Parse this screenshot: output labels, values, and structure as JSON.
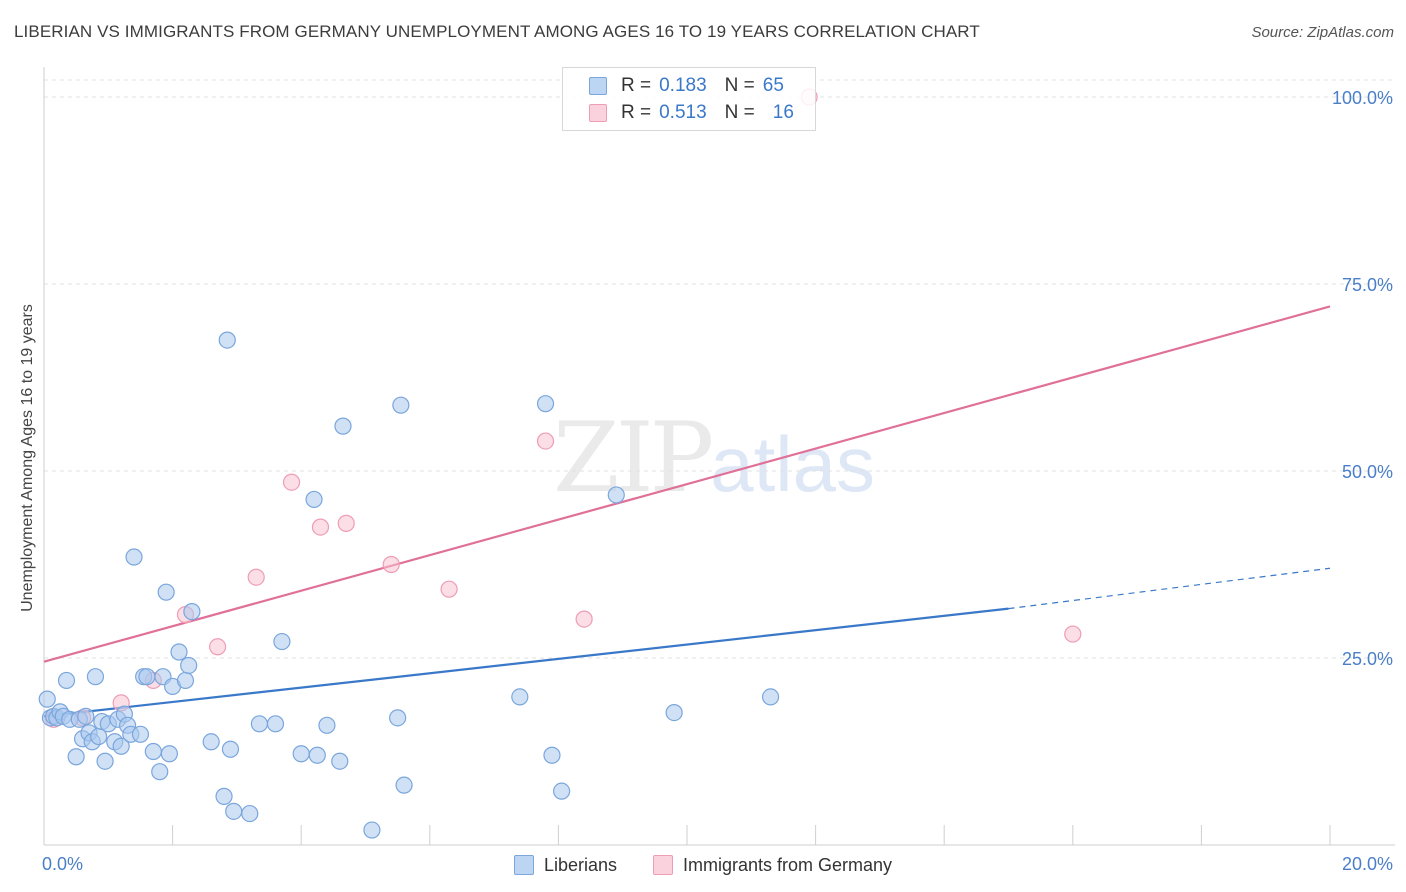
{
  "header": {
    "title": "LIBERIAN VS IMMIGRANTS FROM GERMANY UNEMPLOYMENT AMONG AGES 16 TO 19 YEARS CORRELATION CHART",
    "source": "Source: ZipAtlas.com"
  },
  "watermark": {
    "zip": "ZIP",
    "atlas": "atlas"
  },
  "legend": {
    "r_label": "R =",
    "n_label": "N =",
    "series1": {
      "r": "0.183",
      "n": "65"
    },
    "series2": {
      "r": "0.513",
      "n": "16"
    }
  },
  "bottom_legend": {
    "series1": "Liberians",
    "series2": "Immigrants from Germany"
  },
  "colors": {
    "liberians_fill": "#a9c8ef",
    "liberians_stroke": "#7aa6dc",
    "liberians_line": "#3a78c9",
    "germany_fill": "#f7c3d1",
    "germany_stroke": "#ee9db4",
    "germany_line": "#e07098",
    "tick_color": "#4a7fc8"
  },
  "chart_data": {
    "type": "scatter",
    "title": "LIBERIAN VS IMMIGRANTS FROM GERMANY UNEMPLOYMENT AMONG AGES 16 TO 19 YEARS CORRELATION CHART",
    "xlabel": "",
    "ylabel": "Unemployment Among Ages 16 to 19 years",
    "xlim": [
      0,
      20
    ],
    "ylim": [
      0,
      100
    ],
    "x_ticks": [
      "0.0%",
      "20.0%"
    ],
    "y_ticks": [
      {
        "value": 25,
        "label": "25.0%"
      },
      {
        "value": 50,
        "label": "50.0%"
      },
      {
        "value": 75,
        "label": "75.0%"
      },
      {
        "value": 100,
        "label": "100.0%"
      }
    ],
    "series": [
      {
        "name": "Liberians",
        "r": 0.183,
        "n": 65,
        "trend": {
          "x0": 0,
          "y0": 17.2,
          "x1": 15.0,
          "y1": 31.6,
          "dash_to_x": 20.0,
          "dash_to_y": 37.0
        },
        "points": [
          [
            0.05,
            19.5
          ],
          [
            0.1,
            17.0
          ],
          [
            0.15,
            17.2
          ],
          [
            0.2,
            17.0
          ],
          [
            0.25,
            17.8
          ],
          [
            0.3,
            17.2
          ],
          [
            0.35,
            22.0
          ],
          [
            0.4,
            16.8
          ],
          [
            0.5,
            11.8
          ],
          [
            0.55,
            16.8
          ],
          [
            0.6,
            14.2
          ],
          [
            0.65,
            17.2
          ],
          [
            0.7,
            15.0
          ],
          [
            0.75,
            13.8
          ],
          [
            0.8,
            22.5
          ],
          [
            0.85,
            14.5
          ],
          [
            0.9,
            16.5
          ],
          [
            0.95,
            11.2
          ],
          [
            1.0,
            16.2
          ],
          [
            1.1,
            13.8
          ],
          [
            1.15,
            16.8
          ],
          [
            1.2,
            13.2
          ],
          [
            1.25,
            17.5
          ],
          [
            1.3,
            16.0
          ],
          [
            1.35,
            14.8
          ],
          [
            1.4,
            38.5
          ],
          [
            1.5,
            14.8
          ],
          [
            1.55,
            22.5
          ],
          [
            1.6,
            22.5
          ],
          [
            1.7,
            12.5
          ],
          [
            1.8,
            9.8
          ],
          [
            1.85,
            22.5
          ],
          [
            1.9,
            33.8
          ],
          [
            1.95,
            12.2
          ],
          [
            2.0,
            21.2
          ],
          [
            2.1,
            25.8
          ],
          [
            2.2,
            22.0
          ],
          [
            2.25,
            24.0
          ],
          [
            2.3,
            31.2
          ],
          [
            2.6,
            13.8
          ],
          [
            2.8,
            6.5
          ],
          [
            2.85,
            67.5
          ],
          [
            2.9,
            12.8
          ],
          [
            2.95,
            4.5
          ],
          [
            3.2,
            4.2
          ],
          [
            3.35,
            16.2
          ],
          [
            3.6,
            16.2
          ],
          [
            3.7,
            27.2
          ],
          [
            4.0,
            12.2
          ],
          [
            4.2,
            46.2
          ],
          [
            4.25,
            12.0
          ],
          [
            4.4,
            16.0
          ],
          [
            4.6,
            11.2
          ],
          [
            4.65,
            56.0
          ],
          [
            5.1,
            2.0
          ],
          [
            5.5,
            17.0
          ],
          [
            5.55,
            58.8
          ],
          [
            5.6,
            8.0
          ],
          [
            7.4,
            19.8
          ],
          [
            7.8,
            59.0
          ],
          [
            7.9,
            12.0
          ],
          [
            8.05,
            7.2
          ],
          [
            8.9,
            46.8
          ],
          [
            9.8,
            17.7
          ],
          [
            11.3,
            19.8
          ]
        ]
      },
      {
        "name": "Immigrants from Germany",
        "r": 0.513,
        "n": 16,
        "trend": {
          "x0": 0,
          "y0": 24.5,
          "x1": 20.0,
          "y1": 72.0
        },
        "points": [
          [
            0.15,
            16.8
          ],
          [
            0.6,
            17.0
          ],
          [
            1.2,
            19.0
          ],
          [
            1.7,
            22.0
          ],
          [
            2.2,
            30.8
          ],
          [
            2.7,
            26.5
          ],
          [
            3.3,
            35.8
          ],
          [
            3.85,
            48.5
          ],
          [
            4.3,
            42.5
          ],
          [
            4.7,
            43.0
          ],
          [
            5.4,
            37.5
          ],
          [
            6.3,
            34.2
          ],
          [
            7.8,
            54.0
          ],
          [
            8.4,
            30.2
          ],
          [
            11.9,
            100.0
          ],
          [
            16.0,
            28.2
          ]
        ]
      }
    ]
  }
}
